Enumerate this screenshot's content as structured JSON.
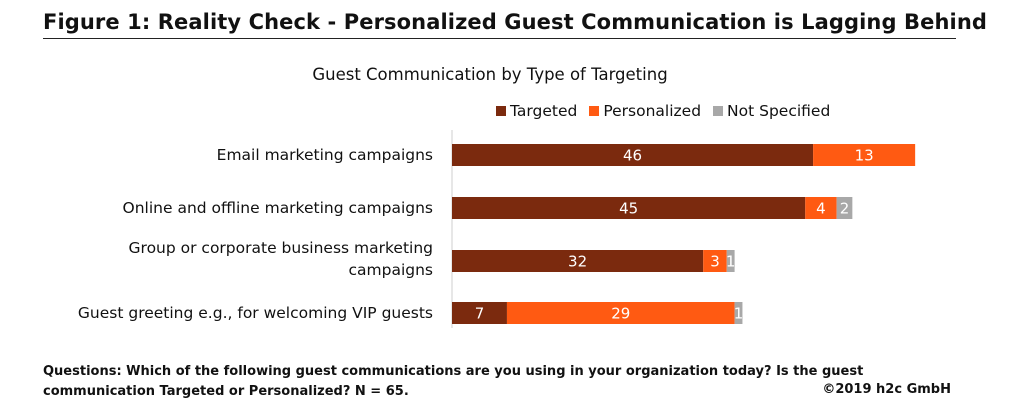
{
  "figure_title": "Figure 1: Reality Check - Personalized Guest Communication is Lagging Behind",
  "footer": {
    "question": "Questions: Which of the following guest communications are you using in your organization today? Is the guest communication Targeted or Personalized?  N = 65.",
    "copyright": "©2019 h2c GmbH"
  },
  "colors": {
    "targeted": "#7B2A0E",
    "personalized": "#FF5A12",
    "not_specified": "#A8A8A8"
  },
  "chart_data": {
    "type": "bar",
    "orientation": "horizontal",
    "stacked": true,
    "title": "Guest Communication by Type of Targeting",
    "legend_position": "top",
    "categories": [
      "Email marketing campaigns",
      "Online and offline marketing campaigns",
      "Group or corporate business marketing campaigns",
      "Guest greeting e.g., for welcoming VIP guests"
    ],
    "series": [
      {
        "name": "Targeted",
        "values": [
          46,
          45,
          32,
          7
        ]
      },
      {
        "name": "Personalized",
        "values": [
          13,
          4,
          3,
          29
        ]
      },
      {
        "name": "Not Specified",
        "values": [
          0,
          2,
          1,
          1
        ]
      }
    ]
  }
}
